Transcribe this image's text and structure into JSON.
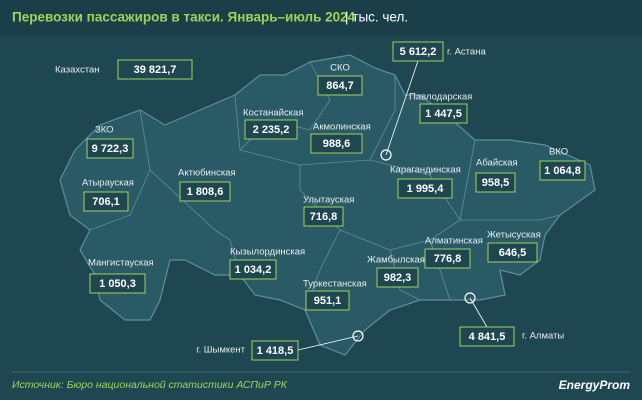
{
  "header": {
    "title": "Перевозки пассажиров в такси. Январь–июль 2024",
    "unit": "| тыс. чел."
  },
  "country": {
    "name": "Казахстан",
    "value": "39 821,7"
  },
  "regions": [
    {
      "name": "СКО",
      "value": "864,7"
    },
    {
      "name": "г. Астана",
      "value": "5 612,2"
    },
    {
      "name": "Павлодарская",
      "value": "1 447,5"
    },
    {
      "name": "Костанайская",
      "value": "2 235,2"
    },
    {
      "name": "Акмолинская",
      "value": "988,6"
    },
    {
      "name": "ЗКО",
      "value": "9 722,3"
    },
    {
      "name": "Атырауская",
      "value": "706,1"
    },
    {
      "name": "Актюбинская",
      "value": "1 808,6"
    },
    {
      "name": "Карагандинская",
      "value": "1 995,4"
    },
    {
      "name": "Абайская",
      "value": "958,5"
    },
    {
      "name": "ВКО",
      "value": "1 064,8"
    },
    {
      "name": "Улытауская",
      "value": "716,8"
    },
    {
      "name": "Жетысуская",
      "value": "646,5"
    },
    {
      "name": "Алматинская",
      "value": "776,8"
    },
    {
      "name": "Кызылординская",
      "value": "1 034,2"
    },
    {
      "name": "Мангистауская",
      "value": "1 050,3"
    },
    {
      "name": "Жамбылская",
      "value": "982,3"
    },
    {
      "name": "Туркестанская",
      "value": "951,1"
    },
    {
      "name": "г. Шымкент",
      "value": "1 418,5"
    },
    {
      "name": "г. Алматы",
      "value": "4 841,5"
    }
  ],
  "footer": {
    "source": "Источник: Бюро национальной статистики АСПиР РК",
    "logo": "EnergyProm"
  }
}
